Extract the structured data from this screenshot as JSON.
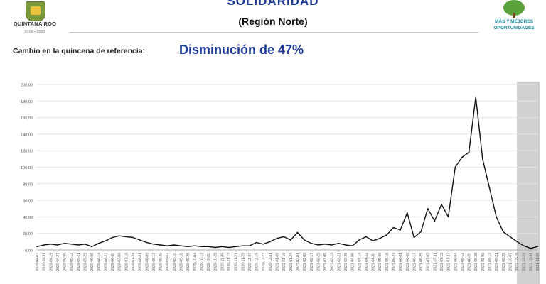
{
  "header": {
    "title": "SOLIDARIDAD",
    "subtitle": "(Región Norte)",
    "left_logo_name": "QUINTANA ROO",
    "left_logo_years": "2016 • 2022",
    "right_logo_line1": "MÁS Y MEJORES",
    "right_logo_line2": "OPORTUNIDADES",
    "left_logo_icon": "state-shield-icon",
    "right_logo_icon": "tree-icon"
  },
  "summary": {
    "label": "Cambio en la quincena de referencia:",
    "value": "Disminución de 47%"
  },
  "colors": {
    "title": "#1f3a93",
    "line": "#111111",
    "shaded": "#d0d0d0",
    "grid": "#e3e3e3"
  },
  "chart_data": {
    "type": "line",
    "title": "",
    "xlabel": "",
    "ylabel": "",
    "ylim": [
      0,
      200
    ],
    "yticks": [
      "0,00",
      "20,00",
      "40,00",
      "60,00",
      "80,00",
      "100,00",
      "120,00",
      "140,00",
      "160,00",
      "180,00",
      "200,00"
    ],
    "grid": "horizontal",
    "shaded_x_range": [
      "2021-10-15",
      "2021-11-08"
    ],
    "x_tick_labels": [
      "2020-04-03",
      "2020-04-11",
      "2020-04-19",
      "2020-04-27",
      "2020-05-05",
      "2020-05-13",
      "2020-05-21",
      "2020-05-29",
      "2020-06-06",
      "2020-06-14",
      "2020-06-22",
      "2020-06-30",
      "2020-07-08",
      "2020-07-16",
      "2020-07-24",
      "2020-08-01",
      "2020-08-09",
      "2020-08-17",
      "2020-08-25",
      "2020-09-02",
      "2020-09-10",
      "2020-09-18",
      "2020-09-26",
      "2020-10-04",
      "2020-10-12",
      "2020-10-20",
      "2020-10-28",
      "2020-11-05",
      "2020-11-13",
      "2020-11-21",
      "2020-11-29",
      "2020-12-07",
      "2020-12-15",
      "2020-12-23",
      "2020-12-31",
      "2021-01-08",
      "2021-01-16",
      "2021-01-24",
      "2021-02-01",
      "2021-02-09",
      "2021-02-17",
      "2021-02-25",
      "2021-03-05",
      "2021-03-13",
      "2021-03-21",
      "2021-03-29",
      "2021-04-06",
      "2021-04-14",
      "2021-04-22",
      "2021-04-30",
      "2021-05-08",
      "2021-05-16",
      "2021-05-24",
      "2021-06-01",
      "2021-06-09",
      "2021-06-17",
      "2021-06-25",
      "2021-07-03",
      "2021-07-11",
      "2021-07-19",
      "2021-07-27",
      "2021-08-04",
      "2021-08-12",
      "2021-08-20",
      "2021-08-28",
      "2021-09-05",
      "2021-09-13",
      "2021-09-21",
      "2021-09-29",
      "2021-10-07",
      "2021-10-15",
      "2021-10-23",
      "2021-10-31",
      "2021-11-08"
    ],
    "series": [
      {
        "name": "",
        "points": [
          [
            "2020-04-03",
            4
          ],
          [
            "2020-04-11",
            6
          ],
          [
            "2020-04-19",
            7
          ],
          [
            "2020-04-27",
            6
          ],
          [
            "2020-05-05",
            8
          ],
          [
            "2020-05-13",
            7
          ],
          [
            "2020-05-21",
            6
          ],
          [
            "2020-05-29",
            7
          ],
          [
            "2020-06-06",
            4
          ],
          [
            "2020-06-14",
            8
          ],
          [
            "2020-06-22",
            11
          ],
          [
            "2020-06-30",
            15
          ],
          [
            "2020-07-08",
            17
          ],
          [
            "2020-07-16",
            16
          ],
          [
            "2020-07-24",
            15
          ],
          [
            "2020-08-01",
            12
          ],
          [
            "2020-08-09",
            9
          ],
          [
            "2020-08-17",
            7
          ],
          [
            "2020-08-25",
            6
          ],
          [
            "2020-09-02",
            5
          ],
          [
            "2020-09-10",
            6
          ],
          [
            "2020-09-18",
            5
          ],
          [
            "2020-09-26",
            4
          ],
          [
            "2020-10-04",
            5
          ],
          [
            "2020-10-12",
            4
          ],
          [
            "2020-10-20",
            4
          ],
          [
            "2020-10-28",
            3
          ],
          [
            "2020-11-05",
            4
          ],
          [
            "2020-11-13",
            3
          ],
          [
            "2020-11-21",
            4
          ],
          [
            "2020-11-29",
            5
          ],
          [
            "2020-12-07",
            5
          ],
          [
            "2020-12-15",
            9
          ],
          [
            "2020-12-23",
            7
          ],
          [
            "2020-12-31",
            10
          ],
          [
            "2021-01-08",
            14
          ],
          [
            "2021-01-16",
            16
          ],
          [
            "2021-01-24",
            12
          ],
          [
            "2021-02-01",
            21
          ],
          [
            "2021-02-09",
            12
          ],
          [
            "2021-02-17",
            8
          ],
          [
            "2021-02-25",
            6
          ],
          [
            "2021-03-05",
            7
          ],
          [
            "2021-03-13",
            6
          ],
          [
            "2021-03-21",
            8
          ],
          [
            "2021-03-29",
            6
          ],
          [
            "2021-04-06",
            5
          ],
          [
            "2021-04-14",
            12
          ],
          [
            "2021-04-22",
            16
          ],
          [
            "2021-04-30",
            11
          ],
          [
            "2021-05-08",
            14
          ],
          [
            "2021-05-16",
            18
          ],
          [
            "2021-05-24",
            27
          ],
          [
            "2021-06-01",
            24
          ],
          [
            "2021-06-09",
            45
          ],
          [
            "2021-06-17",
            15
          ],
          [
            "2021-06-25",
            22
          ],
          [
            "2021-07-03",
            50
          ],
          [
            "2021-07-11",
            35
          ],
          [
            "2021-07-19",
            55
          ],
          [
            "2021-07-27",
            40
          ],
          [
            "2021-08-04",
            100
          ],
          [
            "2021-08-12",
            112
          ],
          [
            "2021-08-20",
            118
          ],
          [
            "2021-08-28",
            185
          ],
          [
            "2021-09-05",
            110
          ],
          [
            "2021-09-13",
            75
          ],
          [
            "2021-09-21",
            40
          ],
          [
            "2021-09-29",
            22
          ],
          [
            "2021-10-07",
            16
          ],
          [
            "2021-10-15",
            10
          ],
          [
            "2021-10-23",
            5
          ],
          [
            "2021-10-31",
            2
          ],
          [
            "2021-11-08",
            4
          ]
        ]
      }
    ]
  }
}
